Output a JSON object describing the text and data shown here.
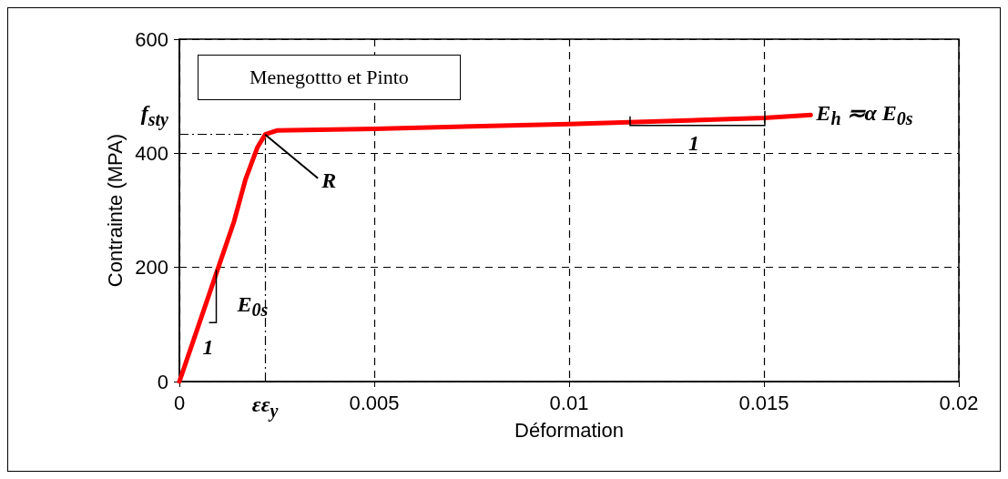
{
  "chart_data": {
    "type": "line",
    "xlabel": "Déformation",
    "ylabel": "Contrainte (MPA)",
    "x": [
      0,
      0.0005,
      0.001,
      0.0014,
      0.0017,
      0.002,
      0.0022,
      0.0025,
      0.005,
      0.01,
      0.015,
      0.0162
    ],
    "series": [
      {
        "color": "#ff0000",
        "values": [
          0,
          100,
          200,
          280,
          355,
          410,
          433,
          440,
          443,
          451,
          462,
          467
        ]
      }
    ],
    "xlim": [
      0,
      0.02
    ],
    "xticks": [
      0,
      0.005,
      0.01,
      0.015,
      0.02
    ],
    "ylim": [
      0,
      600
    ],
    "yticks": [
      0,
      200,
      400,
      600
    ],
    "grid": true,
    "marker": "none",
    "line_style": "solid",
    "ref_lines": [
      {
        "axis": "y",
        "value": 433,
        "label": "f$_{sty}$",
        "line_style": "dashed"
      },
      {
        "axis": "x",
        "value": 0.0022,
        "label": "εε$_{y}$",
        "line_style": "dashed"
      }
    ],
    "annotations": [
      "Menegottto et Pinto",
      {
        "text": "R",
        "x": 0.0022,
        "y": 433
      },
      {
        "text": "E$_{0s}$",
        "x": 0.0009,
        "y": 180
      },
      {
        "text": "1",
        "x": 0.0005,
        "y": 100
      },
      {
        "text": "1",
        "x": 0.0132,
        "y": 452
      },
      {
        "text": "E$_{h}$ ≂α E$_{0s}$",
        "x": 0.0162,
        "y": 467
      }
    ]
  }
}
